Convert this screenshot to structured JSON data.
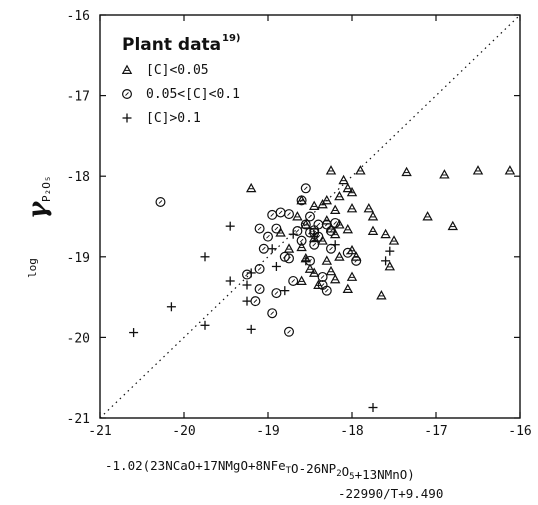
{
  "chart_data": {
    "type": "scatter",
    "xlim": [
      -21,
      -16
    ],
    "ylim": [
      -21,
      -16
    ],
    "x_ticks": [
      "-21",
      "-20",
      "-19",
      "-18",
      "-17",
      "-16"
    ],
    "y_ticks": [
      "-16",
      "-17",
      "-18",
      "-19",
      "-20",
      "-21"
    ],
    "grid": false,
    "diagonal_reference": true,
    "legend_placement": "top-left",
    "legend_title": "Plant data",
    "legend_title_sup": "19)",
    "ylabel": {
      "prefix": "log",
      "symbol": "γ",
      "subscript": "P₂O₅"
    },
    "xlabel": {
      "line1_parts": [
        {
          "text": "-1.02(23NCaO+17NMgO+8NFe",
          "sub": false
        },
        {
          "text": "T",
          "sub": true
        },
        {
          "text": "O-26NP",
          "sub": false
        },
        {
          "text": "2",
          "sub": true
        },
        {
          "text": "O",
          "sub": false
        },
        {
          "text": "5",
          "sub": true
        },
        {
          "text": "+13NMnO)",
          "sub": false
        }
      ],
      "line2": "-22990/T+9.490"
    },
    "series": [
      {
        "name": "[C]<0.05",
        "marker": "triangle",
        "points": [
          [
            -19.2,
            -18.15
          ],
          [
            -18.25,
            -17.93
          ],
          [
            -17.9,
            -17.93
          ],
          [
            -17.35,
            -17.95
          ],
          [
            -16.9,
            -17.98
          ],
          [
            -16.5,
            -17.93
          ],
          [
            -16.12,
            -17.93
          ],
          [
            -18.1,
            -18.05
          ],
          [
            -18.05,
            -18.15
          ],
          [
            -18.15,
            -18.25
          ],
          [
            -18.0,
            -18.2
          ],
          [
            -18.3,
            -18.3
          ],
          [
            -18.6,
            -18.3
          ],
          [
            -18.35,
            -18.35
          ],
          [
            -18.45,
            -18.37
          ],
          [
            -18.0,
            -18.4
          ],
          [
            -17.8,
            -18.4
          ],
          [
            -18.2,
            -18.42
          ],
          [
            -17.75,
            -18.5
          ],
          [
            -17.1,
            -18.5
          ],
          [
            -18.65,
            -18.5
          ],
          [
            -18.3,
            -18.55
          ],
          [
            -18.15,
            -18.6
          ],
          [
            -18.55,
            -18.6
          ],
          [
            -16.8,
            -18.62
          ],
          [
            -18.25,
            -18.65
          ],
          [
            -18.05,
            -18.66
          ],
          [
            -17.75,
            -18.68
          ],
          [
            -18.85,
            -18.7
          ],
          [
            -18.2,
            -18.72
          ],
          [
            -17.6,
            -18.72
          ],
          [
            -18.45,
            -18.77
          ],
          [
            -17.5,
            -18.8
          ],
          [
            -18.35,
            -18.8
          ],
          [
            -18.6,
            -18.88
          ],
          [
            -18.75,
            -18.9
          ],
          [
            -18.0,
            -18.92
          ],
          [
            -17.95,
            -19.0
          ],
          [
            -18.15,
            -19.0
          ],
          [
            -18.55,
            -19.02
          ],
          [
            -18.3,
            -19.05
          ],
          [
            -18.5,
            -19.15
          ],
          [
            -18.25,
            -19.18
          ],
          [
            -18.45,
            -19.2
          ],
          [
            -17.55,
            -19.12
          ],
          [
            -18.0,
            -19.25
          ],
          [
            -18.2,
            -19.28
          ],
          [
            -18.6,
            -19.3
          ],
          [
            -18.4,
            -19.35
          ],
          [
            -18.05,
            -19.4
          ],
          [
            -17.65,
            -19.48
          ]
        ]
      },
      {
        "name": "0.05<[C]<0.1",
        "marker": "circle",
        "points": [
          [
            -20.28,
            -18.32
          ],
          [
            -18.55,
            -18.15
          ],
          [
            -18.6,
            -18.3
          ],
          [
            -18.85,
            -18.45
          ],
          [
            -18.95,
            -18.48
          ],
          [
            -18.75,
            -18.47
          ],
          [
            -18.5,
            -18.5
          ],
          [
            -18.55,
            -18.6
          ],
          [
            -18.4,
            -18.6
          ],
          [
            -18.3,
            -18.6
          ],
          [
            -18.2,
            -18.58
          ],
          [
            -19.1,
            -18.65
          ],
          [
            -18.9,
            -18.65
          ],
          [
            -18.65,
            -18.68
          ],
          [
            -18.5,
            -18.7
          ],
          [
            -18.45,
            -18.7
          ],
          [
            -18.25,
            -18.68
          ],
          [
            -18.4,
            -18.75
          ],
          [
            -18.45,
            -18.67
          ],
          [
            -19.0,
            -18.75
          ],
          [
            -18.6,
            -18.8
          ],
          [
            -18.45,
            -18.85
          ],
          [
            -18.25,
            -18.9
          ],
          [
            -18.05,
            -18.95
          ],
          [
            -19.05,
            -18.9
          ],
          [
            -18.8,
            -19.0
          ],
          [
            -18.75,
            -19.02
          ],
          [
            -18.5,
            -19.05
          ],
          [
            -17.95,
            -19.05
          ],
          [
            -18.35,
            -19.25
          ],
          [
            -19.1,
            -19.15
          ],
          [
            -19.25,
            -19.22
          ],
          [
            -18.7,
            -19.3
          ],
          [
            -18.35,
            -19.35
          ],
          [
            -18.3,
            -19.42
          ],
          [
            -19.1,
            -19.4
          ],
          [
            -18.9,
            -19.45
          ],
          [
            -19.15,
            -19.55
          ],
          [
            -18.95,
            -19.7
          ],
          [
            -18.75,
            -19.93
          ]
        ]
      },
      {
        "name": "[C]>0.1",
        "marker": "plus",
        "points": [
          [
            -19.45,
            -18.62
          ],
          [
            -18.2,
            -18.85
          ],
          [
            -18.7,
            -18.72
          ],
          [
            -18.45,
            -18.75
          ],
          [
            -18.95,
            -18.9
          ],
          [
            -19.75,
            -19.0
          ],
          [
            -17.55,
            -18.93
          ],
          [
            -17.6,
            -19.05
          ],
          [
            -18.55,
            -19.05
          ],
          [
            -19.2,
            -19.2
          ],
          [
            -18.9,
            -19.12
          ],
          [
            -19.45,
            -19.3
          ],
          [
            -19.25,
            -19.35
          ],
          [
            -19.25,
            -19.55
          ],
          [
            -18.8,
            -19.42
          ],
          [
            -20.15,
            -19.62
          ],
          [
            -19.75,
            -19.85
          ],
          [
            -19.2,
            -19.9
          ],
          [
            -17.75,
            -20.87
          ],
          [
            -20.6,
            -19.94
          ]
        ]
      }
    ]
  }
}
